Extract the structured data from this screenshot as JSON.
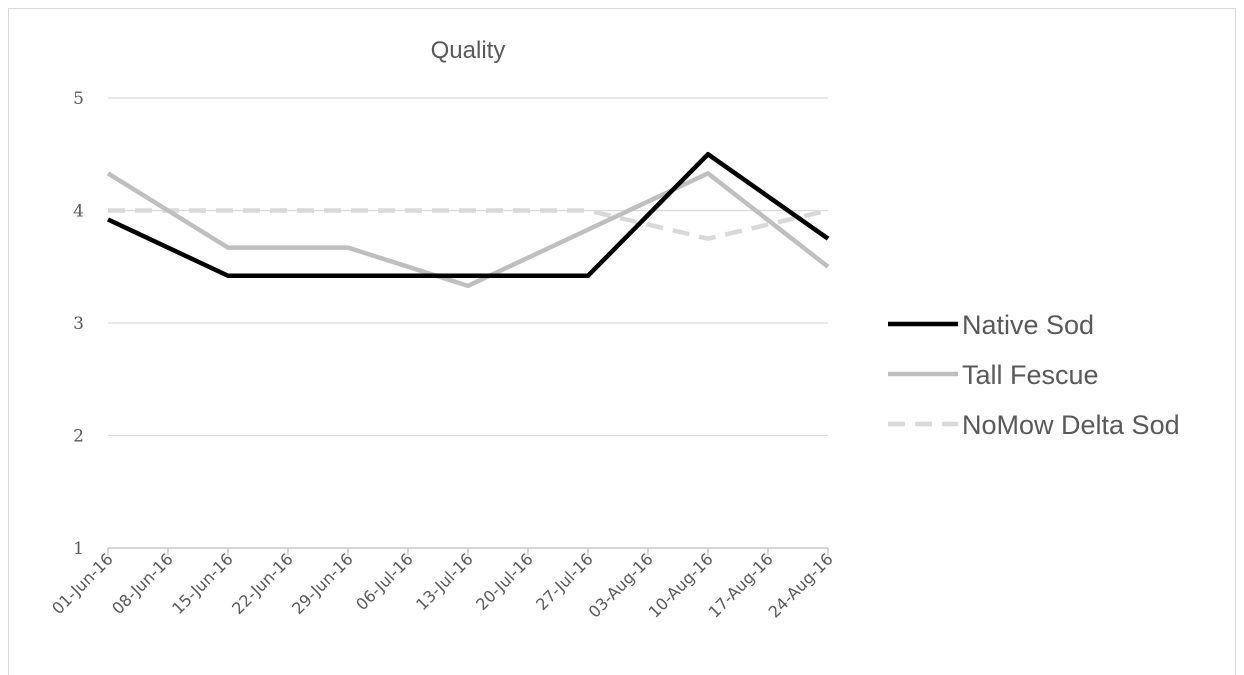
{
  "chart_data": {
    "type": "line",
    "title": "Quality",
    "xlabel": "",
    "ylabel": "",
    "ylim": [
      1,
      5
    ],
    "yticks": [
      "1",
      "2",
      "3",
      "4",
      "5"
    ],
    "x": [
      "01-Jun-16",
      "08-Jun-16",
      "15-Jun-16",
      "22-Jun-16",
      "29-Jun-16",
      "06-Jul-16",
      "13-Jul-16",
      "20-Jul-16",
      "27-Jul-16",
      "03-Aug-16",
      "10-Aug-16",
      "17-Aug-16",
      "24-Aug-16"
    ],
    "grid": true,
    "legend_position": "right",
    "series": [
      {
        "name": "Native Sod",
        "color": "#000000",
        "style": "solid",
        "points": [
          {
            "x": "01-Jun-16",
            "y": 3.92
          },
          {
            "x": "15-Jun-16",
            "y": 3.42
          },
          {
            "x": "29-Jun-16",
            "y": 3.42
          },
          {
            "x": "13-Jul-16",
            "y": 3.42
          },
          {
            "x": "27-Jul-16",
            "y": 3.42
          },
          {
            "x": "10-Aug-16",
            "y": 4.5
          },
          {
            "x": "24-Aug-16",
            "y": 3.75
          }
        ]
      },
      {
        "name": "Tall Fescue",
        "color": "#bfbfbf",
        "style": "solid",
        "points": [
          {
            "x": "01-Jun-16",
            "y": 4.33
          },
          {
            "x": "15-Jun-16",
            "y": 3.67
          },
          {
            "x": "29-Jun-16",
            "y": 3.67
          },
          {
            "x": "13-Jul-16",
            "y": 3.33
          },
          {
            "x": "27-Jul-16",
            "y": 3.83
          },
          {
            "x": "10-Aug-16",
            "y": 4.33
          },
          {
            "x": "24-Aug-16",
            "y": 3.5
          }
        ]
      },
      {
        "name": "NoMow Delta Sod",
        "color": "#d9d9d9",
        "style": "dashed",
        "points": [
          {
            "x": "01-Jun-16",
            "y": 4.0
          },
          {
            "x": "15-Jun-16",
            "y": 4.0
          },
          {
            "x": "29-Jun-16",
            "y": 4.0
          },
          {
            "x": "13-Jul-16",
            "y": 4.0
          },
          {
            "x": "27-Jul-16",
            "y": 4.0
          },
          {
            "x": "10-Aug-16",
            "y": 3.75
          },
          {
            "x": "24-Aug-16",
            "y": 4.0
          }
        ]
      }
    ]
  }
}
